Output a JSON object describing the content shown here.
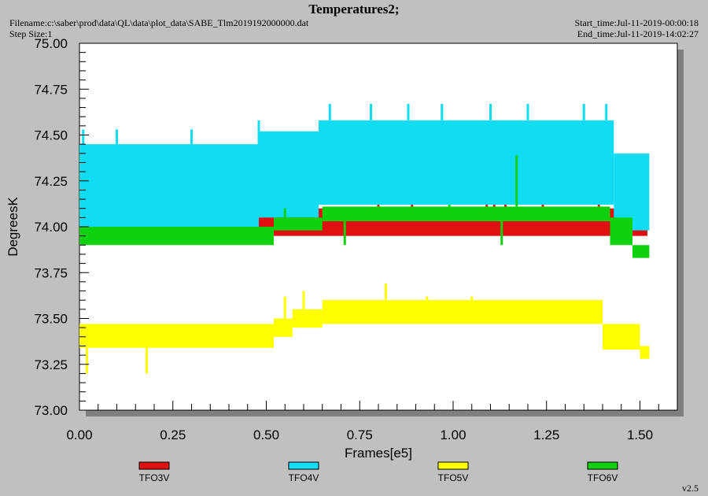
{
  "header": {
    "title": "Temperatures2;",
    "filename": "Filename:c:\\saber\\prod\\data\\QL\\data\\plot_data\\SABE_Tlm2019192000000.dat",
    "step_size": "Step Size:1",
    "start_time": "Start_time:Jul-11-2019-00:00:18",
    "end_time": "End_time:Jul-11-2019-14:02:27",
    "version": "v2.5"
  },
  "chart_data": {
    "type": "line",
    "title": "Temperatures2;",
    "xlabel": "Frames[e5]",
    "ylabel": "DegreesK",
    "xlim": [
      0.0,
      1.6
    ],
    "ylim": [
      73.0,
      75.0
    ],
    "x_ticks": [
      "0.00",
      "0.25",
      "0.50",
      "0.75",
      "1.00",
      "1.25",
      "1.50"
    ],
    "y_ticks": [
      "73.00",
      "73.25",
      "73.50",
      "73.75",
      "74.00",
      "74.25",
      "74.50",
      "74.75",
      "75.00"
    ],
    "grid": false,
    "legend_position": "bottom",
    "series": [
      {
        "name": "TFO3V",
        "color": "#e01010",
        "bands": [
          {
            "x": [
              0.0,
              1.52
            ],
            "lo": 73.95,
            "hi": 74.1
          }
        ],
        "spikes": [
          [
            0.09,
            74.17
          ],
          [
            0.21,
            74.17
          ],
          [
            0.28,
            74.17
          ],
          [
            0.57,
            74.17
          ],
          [
            0.63,
            74.17
          ],
          [
            0.8,
            74.17
          ],
          [
            0.89,
            74.17
          ],
          [
            1.09,
            74.22
          ],
          [
            1.11,
            74.22
          ],
          [
            1.14,
            74.22
          ],
          [
            1.24,
            74.17
          ],
          [
            1.39,
            74.22
          ]
        ]
      },
      {
        "name": "TFO4V",
        "color": "#10dcf4",
        "bands": [
          {
            "x": [
              0.0,
              0.48
            ],
            "lo": 73.98,
            "hi": 74.45
          },
          {
            "x": [
              0.48,
              0.64
            ],
            "lo": 74.05,
            "hi": 74.52
          },
          {
            "x": [
              0.64,
              1.43
            ],
            "lo": 74.12,
            "hi": 74.58
          },
          {
            "x": [
              1.43,
              1.525
            ],
            "lo": 73.98,
            "hi": 74.4
          }
        ],
        "spikes": [
          [
            0.01,
            74.53
          ],
          [
            0.1,
            74.53
          ],
          [
            0.3,
            74.53
          ],
          [
            0.48,
            74.58
          ],
          [
            0.67,
            74.67
          ],
          [
            0.78,
            74.67
          ],
          [
            0.88,
            74.67
          ],
          [
            0.97,
            74.67
          ],
          [
            1.1,
            74.67
          ],
          [
            1.2,
            74.67
          ],
          [
            1.35,
            74.67
          ],
          [
            1.41,
            74.67
          ]
        ]
      },
      {
        "name": "TFO5V",
        "color": "#ffff00",
        "bands": [
          {
            "x": [
              0.0,
              0.52
            ],
            "lo": 73.34,
            "hi": 73.47
          },
          {
            "x": [
              0.52,
              0.57
            ],
            "lo": 73.4,
            "hi": 73.5
          },
          {
            "x": [
              0.57,
              0.65
            ],
            "lo": 73.45,
            "hi": 73.55
          },
          {
            "x": [
              0.65,
              1.4
            ],
            "lo": 73.47,
            "hi": 73.6
          },
          {
            "x": [
              1.4,
              1.5
            ],
            "lo": 73.33,
            "hi": 73.47
          },
          {
            "x": [
              1.5,
              1.525
            ],
            "lo": 73.28,
            "hi": 73.35
          }
        ],
        "spikes": [
          [
            0.02,
            73.2
          ],
          [
            0.18,
            73.2
          ],
          [
            0.55,
            73.62
          ],
          [
            0.6,
            73.65
          ],
          [
            0.82,
            73.69
          ],
          [
            0.93,
            73.62
          ],
          [
            1.05,
            73.62
          ]
        ]
      },
      {
        "name": "TFO6V",
        "color": "#10d010",
        "bands": [
          {
            "x": [
              0.0,
              0.52
            ],
            "lo": 73.9,
            "hi": 74.0
          },
          {
            "x": [
              0.52,
              0.65
            ],
            "lo": 73.98,
            "hi": 74.05
          },
          {
            "x": [
              0.65,
              1.42
            ],
            "lo": 74.03,
            "hi": 74.11
          },
          {
            "x": [
              1.42,
              1.48
            ],
            "lo": 73.9,
            "hi": 74.05
          },
          {
            "x": [
              1.48,
              1.525
            ],
            "lo": 73.83,
            "hi": 73.9
          }
        ],
        "spikes": [
          [
            0.71,
            73.9
          ],
          [
            1.13,
            73.9
          ],
          [
            1.17,
            74.39
          ],
          [
            0.55,
            74.1
          ],
          [
            0.99,
            74.12
          ]
        ]
      }
    ]
  }
}
